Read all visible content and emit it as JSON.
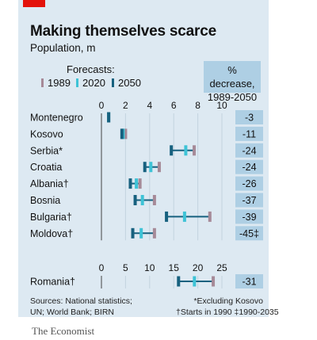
{
  "title": "Making themselves scarce",
  "subtitle": "Population, m",
  "legend": {
    "label": "Forecasts:",
    "items": [
      {
        "label": "1989",
        "color": "#a68a98"
      },
      {
        "label": "2020",
        "color": "#3ec3d6"
      },
      {
        "label": "2050",
        "color": "#17617f"
      }
    ]
  },
  "decrease_header": [
    "% decrease,",
    "1989-2050"
  ],
  "colors": {
    "accent": "#e3120b",
    "panel": "#dde9f2",
    "decrease_box": "#aecfe4",
    "axis": "#444444",
    "range": "#17617f"
  },
  "chart_data": [
    {
      "type": "dot",
      "title": "",
      "xlim": [
        0,
        10
      ],
      "xticks": [
        "0",
        "2",
        "4",
        "6",
        "8",
        "10"
      ],
      "categories": [
        "Montenegro",
        "Kosovo",
        "Serbia*",
        "Croatia",
        "Albania†",
        "Bosnia",
        "Bulgaria†",
        "Moldova†"
      ],
      "series": [
        {
          "name": "1989",
          "values": [
            0.6,
            2.0,
            7.7,
            4.8,
            3.2,
            4.4,
            9.0,
            4.4
          ]
        },
        {
          "name": "2020",
          "values": [
            0.6,
            1.8,
            7.0,
            4.1,
            2.9,
            3.4,
            6.9,
            3.3
          ]
        },
        {
          "name": "2050",
          "values": [
            0.6,
            1.7,
            5.8,
            3.6,
            2.4,
            2.8,
            5.4,
            2.6
          ]
        }
      ],
      "percent_decrease": [
        "-3",
        "-11",
        "-24",
        "-24",
        "-26",
        "-37",
        "-39",
        "-45‡"
      ]
    },
    {
      "type": "dot",
      "title": "",
      "xlim": [
        0,
        25
      ],
      "xticks": [
        "0",
        "5",
        "10",
        "15",
        "20",
        "25"
      ],
      "categories": [
        "Romania†"
      ],
      "series": [
        {
          "name": "1989",
          "values": [
            23.2
          ]
        },
        {
          "name": "2020",
          "values": [
            19.3
          ]
        },
        {
          "name": "2050",
          "values": [
            16.0
          ]
        }
      ],
      "percent_decrease": [
        "-31"
      ]
    }
  ],
  "footer": {
    "sources": [
      "Sources: National statistics;",
      "UN; World Bank; BIRN"
    ],
    "notes": [
      "*Excluding Kosovo",
      "†Starts in 1990  ‡1990-2035"
    ]
  },
  "brand": "The Economist"
}
